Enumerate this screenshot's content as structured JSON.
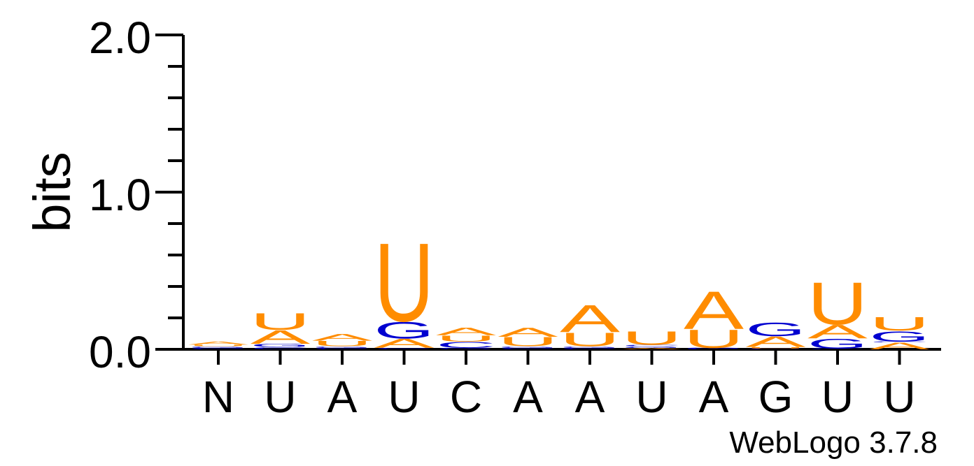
{
  "chart_data": {
    "type": "sequence-logo",
    "title": "",
    "ylabel": "bits",
    "xlabel": "",
    "ylim": [
      0,
      2
    ],
    "yticks": [
      "0.0",
      "1.0",
      "2.0"
    ],
    "credit": "WebLogo 3.7.8",
    "colors": {
      "A": "#ff8c00",
      "U": "#ff8c00",
      "G": "#0000d0",
      "C": "#0000d0"
    },
    "positions": [
      {
        "label": "N",
        "stack": [
          {
            "base": "C",
            "bits": 0.01
          },
          {
            "base": "G",
            "bits": 0.01
          },
          {
            "base": "U",
            "bits": 0.01
          },
          {
            "base": "A",
            "bits": 0.02
          }
        ]
      },
      {
        "label": "U",
        "stack": [
          {
            "base": "C",
            "bits": 0.015
          },
          {
            "base": "G",
            "bits": 0.02
          },
          {
            "base": "A",
            "bits": 0.09
          },
          {
            "base": "U",
            "bits": 0.11
          }
        ]
      },
      {
        "label": "A",
        "stack": [
          {
            "base": "C",
            "bits": 0.01
          },
          {
            "base": "G",
            "bits": 0.01
          },
          {
            "base": "U",
            "bits": 0.035
          },
          {
            "base": "A",
            "bits": 0.045
          }
        ]
      },
      {
        "label": "U",
        "stack": [
          {
            "base": "C",
            "bits": 0.01
          },
          {
            "base": "A",
            "bits": 0.06
          },
          {
            "base": "G",
            "bits": 0.11
          },
          {
            "base": "U",
            "bits": 0.52
          }
        ]
      },
      {
        "label": "C",
        "stack": [
          {
            "base": "G",
            "bits": 0.01
          },
          {
            "base": "C",
            "bits": 0.04
          },
          {
            "base": "U",
            "bits": 0.04
          },
          {
            "base": "A",
            "bits": 0.05
          }
        ]
      },
      {
        "label": "A",
        "stack": [
          {
            "base": "C",
            "bits": 0.01
          },
          {
            "base": "G",
            "bits": 0.01
          },
          {
            "base": "U",
            "bits": 0.06
          },
          {
            "base": "A",
            "bits": 0.06
          }
        ]
      },
      {
        "label": "A",
        "stack": [
          {
            "base": "C",
            "bits": 0.01
          },
          {
            "base": "G",
            "bits": 0.01
          },
          {
            "base": "U",
            "bits": 0.09
          },
          {
            "base": "A",
            "bits": 0.18
          }
        ]
      },
      {
        "label": "U",
        "stack": [
          {
            "base": "A",
            "bits": 0.01
          },
          {
            "base": "G",
            "bits": 0.01
          },
          {
            "base": "C",
            "bits": 0.01
          },
          {
            "base": "U",
            "bits": 0.09
          }
        ]
      },
      {
        "label": "A",
        "stack": [
          {
            "base": "C",
            "bits": 0.005
          },
          {
            "base": "G",
            "bits": 0.005
          },
          {
            "base": "U",
            "bits": 0.12
          },
          {
            "base": "A",
            "bits": 0.25
          }
        ]
      },
      {
        "label": "G",
        "stack": [
          {
            "base": "C",
            "bits": 0.005
          },
          {
            "base": "U",
            "bits": 0.01
          },
          {
            "base": "A",
            "bits": 0.07
          },
          {
            "base": "G",
            "bits": 0.09
          }
        ]
      },
      {
        "label": "U",
        "stack": [
          {
            "base": "C",
            "bits": 0.005
          },
          {
            "base": "G",
            "bits": 0.065
          },
          {
            "base": "A",
            "bits": 0.09
          },
          {
            "base": "U",
            "bits": 0.28
          }
        ]
      },
      {
        "label": "U",
        "stack": [
          {
            "base": "A",
            "bits": 0.045
          },
          {
            "base": "C",
            "bits": 0.005
          },
          {
            "base": "G",
            "bits": 0.07
          },
          {
            "base": "U",
            "bits": 0.09
          }
        ]
      }
    ]
  }
}
